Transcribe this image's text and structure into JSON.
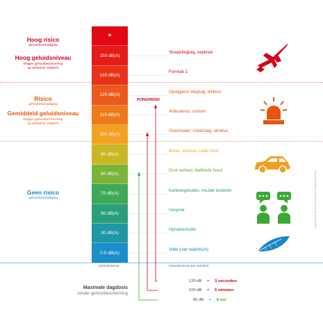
{
  "zones": {
    "high": {
      "title": "Hoog risico",
      "sub": "gehoorbeschadiging",
      "title2": "Hoog geluidsniveau",
      "sub2a": "Dragen gehoorbescherming",
      "sub2b": "op werkvloer verplicht",
      "color": "#d0021b"
    },
    "mid": {
      "title": "Risico",
      "sub": "gehoorbeschadiging",
      "title2": "Gemiddeld geluidsniveau",
      "sub2a": "Dragen gehoorbescherming",
      "sub2b": "op werkvloer verplicht",
      "color": "#e8540c"
    },
    "none": {
      "title": "Geen risico",
      "sub": "gehoorbeschadiging",
      "color": "#1a86c7"
    }
  },
  "bar": [
    {
      "label": "+",
      "color": "#e30613"
    },
    {
      "label": "150 dB(A)",
      "color": "#e41b17"
    },
    {
      "label": "130 dB(A)",
      "color": "#e6331a"
    },
    {
      "label": "120 dB(A)",
      "color": "#ea5a1b"
    },
    {
      "label": "110 dB(A)",
      "color": "#ee7a1b"
    },
    {
      "label": "100 dB(A)",
      "color": "#f3a21f"
    },
    {
      "label": "85 dB(A)",
      "color": "#c9b624"
    },
    {
      "label": "80 dB(A)",
      "color": "#7cb43a"
    },
    {
      "label": "70 dB(A)",
      "color": "#3fa957"
    },
    {
      "label": "60 dB(A)",
      "color": "#2b9f7a"
    },
    {
      "label": "30 dB(A)",
      "color": "#1f97a6"
    },
    {
      "label": "0-5 dB(A)",
      "color": "#1a8fc9"
    }
  ],
  "rows": [
    {
      "label": "",
      "color": "#d0021b"
    },
    {
      "label": "Straalvliegtuig, explosie",
      "color": "#d0021b"
    },
    {
      "label": "Formule 1",
      "color": "#d0021b"
    },
    {
      "label": "Opstijgend vliegtuig, drilboor",
      "color": "#e8540c"
    },
    {
      "label": "Ambulance, concert",
      "color": "#e8540c"
    },
    {
      "label": "Grasmaaier, cirkelzaag, windrus",
      "color": "#e8540c"
    },
    {
      "label": "Boren, schuren, radio hard",
      "color": "#f0a020"
    },
    {
      "label": "Druk verkeer, blaffende hond",
      "color": "#5aa832"
    },
    {
      "label": "Kantoorgeluiden, muziek luisteren",
      "color": "#2a9a5a"
    },
    {
      "label": "Gesprek",
      "color": "#1f9a8a"
    },
    {
      "label": "Opnamestudio",
      "color": "#1f90b0"
    },
    {
      "label": "Stilte (niet realistisch)",
      "color": "#1a86c7"
    }
  ],
  "pijngrens": "PIJNGRENS!",
  "footer": {
    "left": "Geluidsniveau",
    "right": "Geluidsniveau per activiteit"
  },
  "dose": {
    "title": "Maximale dagdosis",
    "sub": "zonder gehoorbescherming",
    "items": [
      {
        "db": "120 dB",
        "sep": "=",
        "time": "3 seconden",
        "color": "#d0021b"
      },
      {
        "db": "100 dB",
        "sep": "=",
        "time": "5 minuten",
        "color": "#d0021b"
      },
      {
        "db": "80 dB",
        "sep": "=",
        "time": "8 uur",
        "color": "#3aa935"
      }
    ]
  },
  "side_note": "Copyright 2019 Bpo Group Holding B.V. All Rights Reserved",
  "icons": [
    "fighter-jet-icon",
    "siren-light-icon",
    "car-icon",
    "chat-people-icon",
    "feather-icon"
  ]
}
